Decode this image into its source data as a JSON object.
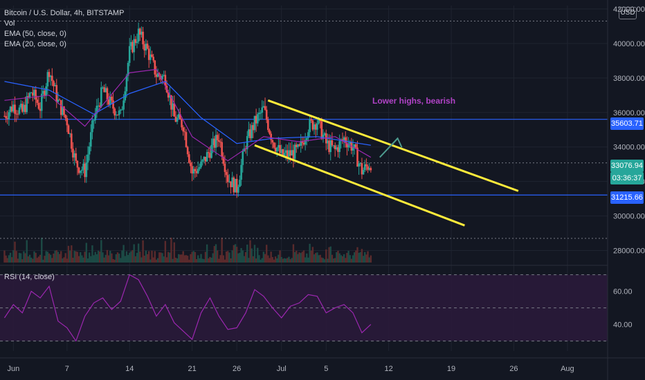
{
  "header": {
    "symbol_title": "Bitcoin / U.S. Dollar, 4h, BITSTAMP",
    "indicator_vol": "Vol",
    "indicator_ema50": "EMA (50, close, 0)",
    "indicator_ema20": "EMA (20, close, 0)",
    "currency": "USD"
  },
  "rsi": {
    "label": "RSI (14, close)"
  },
  "annotation": {
    "text": "Lower highs, bearish"
  },
  "price_tags": {
    "resistance": "35603.71",
    "last_price": "33076.94",
    "countdown": "03:36:37",
    "support": "31215.66"
  },
  "colors": {
    "background": "#131722",
    "up": "#26a69a",
    "down": "#ef5350",
    "ema50": "#2962ff",
    "ema20": "#9c27b0",
    "channel": "#ffeb3b",
    "horizontal_line": "#2962ff",
    "rsi_line": "#9c27b0",
    "annotation": "#b043c6"
  },
  "chart_data": [
    {
      "type": "candlestick",
      "title": "Bitcoin / U.S. Dollar, 4h, BITSTAMP",
      "y_ticks": [
        28000,
        30000,
        32000,
        34000,
        36000,
        38000,
        40000,
        42000
      ],
      "y_tick_labels": [
        "28000.00",
        "30000.00",
        "32000.00",
        "34000.00",
        "36000.00",
        "38000.00",
        "40000.00",
        "42000.00"
      ],
      "ylim": [
        27300,
        42200
      ],
      "x_ticks": [
        "Jun",
        "7",
        "14",
        "21",
        "26",
        "Jul",
        "5",
        "12",
        "19",
        "26",
        "Aug"
      ],
      "x_tick_days": [
        1,
        7,
        14,
        21,
        26,
        31,
        36,
        43,
        50,
        57,
        63
      ],
      "xlim_days": [
        -0.5,
        67.5
      ],
      "x_note": "days counted from Jun 0; Jul 1 = 31",
      "close_path": [
        {
          "day": 0,
          "price": 35800
        },
        {
          "day": 1,
          "price": 36400
        },
        {
          "day": 2,
          "price": 36000
        },
        {
          "day": 3,
          "price": 37200
        },
        {
          "day": 4,
          "price": 36300
        },
        {
          "day": 5,
          "price": 38500
        },
        {
          "day": 6,
          "price": 36600
        },
        {
          "day": 7,
          "price": 35500
        },
        {
          "day": 8,
          "price": 33000
        },
        {
          "day": 9,
          "price": 32600
        },
        {
          "day": 10,
          "price": 35600
        },
        {
          "day": 11,
          "price": 37300
        },
        {
          "day": 12,
          "price": 36400
        },
        {
          "day": 13,
          "price": 35800
        },
        {
          "day": 14,
          "price": 39500
        },
        {
          "day": 15,
          "price": 40600
        },
        {
          "day": 16,
          "price": 39600
        },
        {
          "day": 17,
          "price": 38200
        },
        {
          "day": 18,
          "price": 38000
        },
        {
          "day": 19,
          "price": 35700
        },
        {
          "day": 20,
          "price": 35300
        },
        {
          "day": 21,
          "price": 32500
        },
        {
          "day": 22,
          "price": 32900
        },
        {
          "day": 23,
          "price": 33800
        },
        {
          "day": 24,
          "price": 34600
        },
        {
          "day": 25,
          "price": 32200
        },
        {
          "day": 26,
          "price": 31600
        },
        {
          "day": 27,
          "price": 34200
        },
        {
          "day": 28,
          "price": 35400
        },
        {
          "day": 29,
          "price": 36200
        },
        {
          "day": 30,
          "price": 34400
        },
        {
          "day": 31,
          "price": 33500
        },
        {
          "day": 32,
          "price": 33600
        },
        {
          "day": 33,
          "price": 33800
        },
        {
          "day": 34,
          "price": 35200
        },
        {
          "day": 35,
          "price": 35500
        },
        {
          "day": 36,
          "price": 34200
        },
        {
          "day": 37,
          "price": 33800
        },
        {
          "day": 38,
          "price": 34500
        },
        {
          "day": 39,
          "price": 34000
        },
        {
          "day": 40,
          "price": 32600
        },
        {
          "day": 41,
          "price": 33077
        }
      ],
      "high_low": {
        "high": 41300,
        "low": 28800
      },
      "ema50_path": [
        {
          "day": 0,
          "price": 37800
        },
        {
          "day": 5,
          "price": 37300
        },
        {
          "day": 10,
          "price": 35900
        },
        {
          "day": 14,
          "price": 37100
        },
        {
          "day": 18,
          "price": 37800
        },
        {
          "day": 22,
          "price": 35700
        },
        {
          "day": 26,
          "price": 34200
        },
        {
          "day": 30,
          "price": 34500
        },
        {
          "day": 35,
          "price": 34600
        },
        {
          "day": 41,
          "price": 34100
        }
      ],
      "ema20_path": [
        {
          "day": 0,
          "price": 36700
        },
        {
          "day": 5,
          "price": 37000
        },
        {
          "day": 9,
          "price": 35200
        },
        {
          "day": 14,
          "price": 38300
        },
        {
          "day": 17,
          "price": 38500
        },
        {
          "day": 21,
          "price": 34600
        },
        {
          "day": 25,
          "price": 33200
        },
        {
          "day": 29,
          "price": 34600
        },
        {
          "day": 33,
          "price": 34300
        },
        {
          "day": 37,
          "price": 34600
        },
        {
          "day": 41,
          "price": 33400
        }
      ],
      "horizontal_lines": [
        35603.71,
        31215.66
      ],
      "channel_upper": [
        {
          "day": 29.5,
          "price": 36700
        },
        {
          "day": 57.5,
          "price": 31450
        }
      ],
      "channel_lower": [
        {
          "day": 28,
          "price": 34100
        },
        {
          "day": 51.5,
          "price": 29450
        }
      ],
      "arrow": [
        {
          "day": 42,
          "price": 33400
        },
        {
          "day": 44,
          "price": 34500
        }
      ],
      "annotation": "Lower highs, bearish"
    },
    {
      "type": "line",
      "title": "RSI (14, close)",
      "y_ticks": [
        40,
        60
      ],
      "y_tick_labels": [
        "40.00",
        "60.00"
      ],
      "bands": [
        30,
        50,
        70
      ],
      "ylim": [
        24,
        74
      ],
      "series": [
        {
          "points": [
            {
              "day": 0,
              "value": 44
            },
            {
              "day": 1,
              "value": 52
            },
            {
              "day": 2,
              "value": 47
            },
            {
              "day": 3,
              "value": 60
            },
            {
              "day": 4,
              "value": 56
            },
            {
              "day": 5,
              "value": 63
            },
            {
              "day": 6,
              "value": 42
            },
            {
              "day": 7,
              "value": 38
            },
            {
              "day": 8,
              "value": 30
            },
            {
              "day": 9,
              "value": 45
            },
            {
              "day": 10,
              "value": 53
            },
            {
              "day": 11,
              "value": 56
            },
            {
              "day": 12,
              "value": 49
            },
            {
              "day": 13,
              "value": 54
            },
            {
              "day": 14,
              "value": 70
            },
            {
              "day": 15,
              "value": 67
            },
            {
              "day": 16,
              "value": 57
            },
            {
              "day": 17,
              "value": 45
            },
            {
              "day": 18,
              "value": 52
            },
            {
              "day": 19,
              "value": 41
            },
            {
              "day": 20,
              "value": 36
            },
            {
              "day": 21,
              "value": 31
            },
            {
              "day": 22,
              "value": 47
            },
            {
              "day": 23,
              "value": 56
            },
            {
              "day": 24,
              "value": 45
            },
            {
              "day": 25,
              "value": 37
            },
            {
              "day": 26,
              "value": 38
            },
            {
              "day": 27,
              "value": 47
            },
            {
              "day": 28,
              "value": 61
            },
            {
              "day": 29,
              "value": 57
            },
            {
              "day": 30,
              "value": 50
            },
            {
              "day": 31,
              "value": 44
            },
            {
              "day": 32,
              "value": 51
            },
            {
              "day": 33,
              "value": 53
            },
            {
              "day": 34,
              "value": 58
            },
            {
              "day": 35,
              "value": 57
            },
            {
              "day": 36,
              "value": 47
            },
            {
              "day": 37,
              "value": 50
            },
            {
              "day": 38,
              "value": 52
            },
            {
              "day": 39,
              "value": 47
            },
            {
              "day": 40,
              "value": 35
            },
            {
              "day": 41,
              "value": 40
            }
          ]
        }
      ]
    }
  ]
}
